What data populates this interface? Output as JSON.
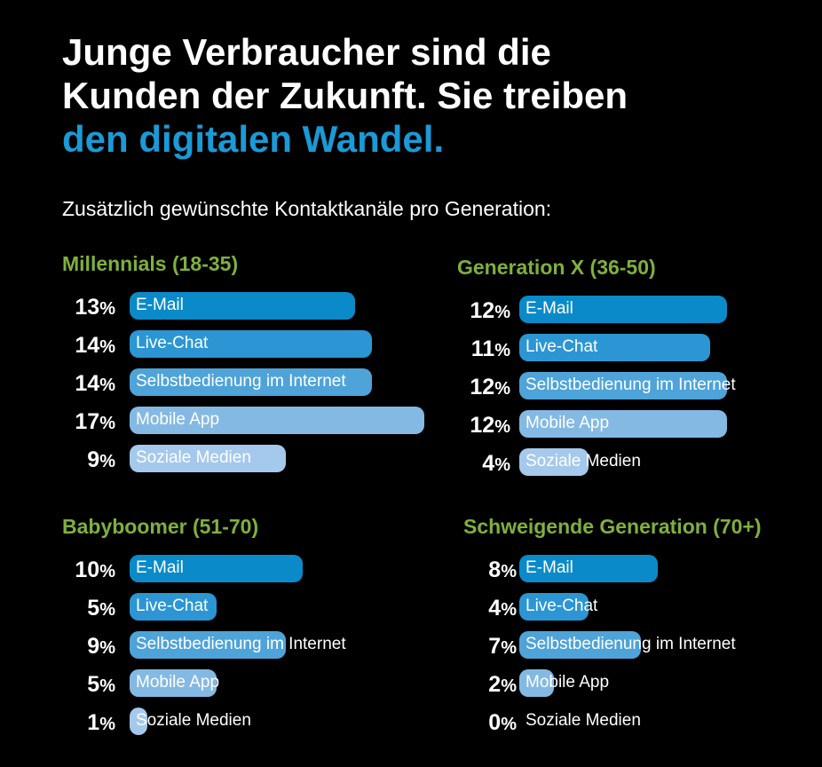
{
  "header": {
    "title_line1": "Junge Verbraucher sind die",
    "title_line2": "Kunden der Zukunft. Sie treiben",
    "title_line3": "den digitalen Wandel.",
    "subtitle": "Zusätzlich gewünschte Kontaktkanäle pro Generation:"
  },
  "colors": {
    "background": "#000000",
    "accent": "#1a9ad6",
    "group_title": "#7fb03d",
    "bar_colors": [
      "#0a8ac9",
      "#2b96d3",
      "#4ea3d9",
      "#84b9e4",
      "#a5c9ec"
    ]
  },
  "chart_data": [
    {
      "type": "bar",
      "orientation": "horizontal",
      "title": "Millennials (18-35)",
      "categories": [
        "E-Mail",
        "Live-Chat",
        "Selbstbedienung im Internet",
        "Mobile App",
        "Soziale Medien"
      ],
      "values": [
        13,
        14,
        14,
        17,
        9
      ],
      "value_labels": [
        "13",
        "14",
        "14",
        "17",
        "9"
      ],
      "unit": "%",
      "xlim": [
        0,
        17
      ]
    },
    {
      "type": "bar",
      "orientation": "horizontal",
      "title": "Generation X (36-50)",
      "categories": [
        "E-Mail",
        "Live-Chat",
        "Selbstbedienung im Internet",
        "Mobile App",
        "Soziale Medien"
      ],
      "values": [
        12,
        11,
        12,
        12,
        4
      ],
      "value_labels": [
        "12",
        "11",
        "12",
        "12",
        "4"
      ],
      "unit": "%",
      "xlim": [
        0,
        17
      ]
    },
    {
      "type": "bar",
      "orientation": "horizontal",
      "title": "Babyboomer (51-70)",
      "categories": [
        "E-Mail",
        "Live-Chat",
        "Selbstbedienung im Internet",
        "Mobile App",
        "Soziale Medien"
      ],
      "values": [
        10,
        5,
        9,
        5,
        1
      ],
      "value_labels": [
        "10",
        "5",
        "9",
        "5",
        "1"
      ],
      "unit": "%",
      "xlim": [
        0,
        17
      ]
    },
    {
      "type": "bar",
      "orientation": "horizontal",
      "title": "Schweigende Generation (70+)",
      "categories": [
        "E-Mail",
        "Live-Chat",
        "Selbstbedienung im Internet",
        "Mobile App",
        "Soziale Medien"
      ],
      "values": [
        8,
        4,
        7,
        2,
        0
      ],
      "value_labels": [
        "8",
        "4",
        "7",
        "2",
        "0"
      ],
      "unit": "%",
      "xlim": [
        0,
        17
      ]
    }
  ]
}
